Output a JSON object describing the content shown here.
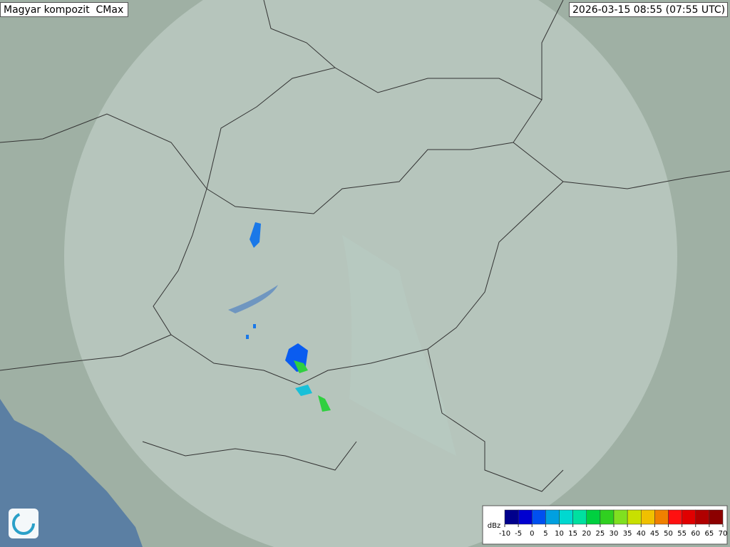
{
  "header": {
    "title": "Magyar kompozit  CMax",
    "timestamp": "2026-03-15 08:55 (07:55 UTC)"
  },
  "legend": {
    "unit": "dBz",
    "ticks": [
      -10,
      -5,
      0,
      5,
      10,
      15,
      20,
      25,
      30,
      35,
      40,
      45,
      50,
      55,
      60,
      65,
      70
    ],
    "colors": [
      "#00008c",
      "#0000d0",
      "#0050f0",
      "#00a0e0",
      "#00d8d0",
      "#00e0a0",
      "#00d040",
      "#30d020",
      "#80e020",
      "#c8e000",
      "#f0c000",
      "#f08000",
      "#ff1010",
      "#e00000",
      "#b00000",
      "#8c0000"
    ]
  }
}
